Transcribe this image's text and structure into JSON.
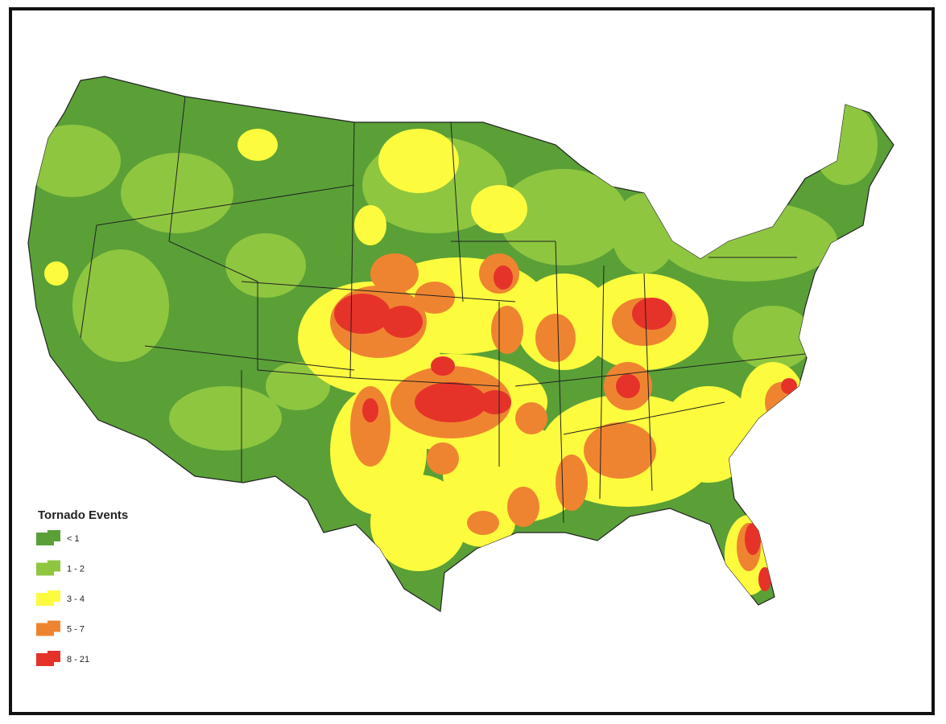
{
  "legend": {
    "title": "Tornado Events",
    "items": [
      {
        "label": "< 1",
        "color": "#5aa037"
      },
      {
        "label": "1 - 2",
        "color": "#8fc640"
      },
      {
        "label": "3 - 4",
        "color": "#fdfb3e"
      },
      {
        "label": "5 - 7",
        "color": "#ef8430"
      },
      {
        "label": "8 - 21",
        "color": "#e5332a"
      }
    ]
  }
}
